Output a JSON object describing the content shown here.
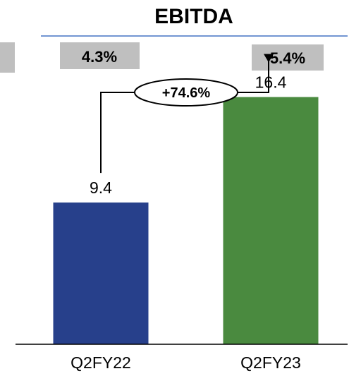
{
  "chart_data": {
    "type": "bar",
    "title": "EBITDA",
    "categories": [
      "Q2FY22",
      "Q2FY23"
    ],
    "values": [
      9.4,
      16.4
    ],
    "value_labels": [
      "9.4",
      "16.4"
    ],
    "margins": [
      "4.3%",
      "5.4%"
    ],
    "growth": "+74.6%",
    "ylim": [
      0,
      19
    ],
    "grid": false,
    "legend": "none",
    "colors": {
      "bars": [
        "#27408b",
        "#4a8a3f"
      ],
      "margin_box": "#bfbfbf",
      "title_rule": "#4472c4",
      "axis": "#000000"
    }
  }
}
